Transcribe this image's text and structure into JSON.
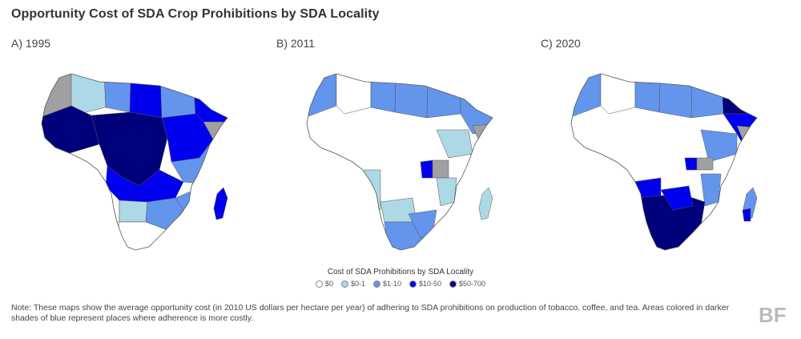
{
  "title": "Opportunity Cost of SDA Crop Prohibitions by SDA Locality",
  "colors": {
    "c0": "#ffffff",
    "c1": "#add8e6",
    "c2": "#6495ed",
    "c3": "#0000ee",
    "c4": "#00007a",
    "nodata": "#a0a0a0",
    "border": "#555555"
  },
  "panels": [
    {
      "label": "A) 1995"
    },
    {
      "label": "B) 2011"
    },
    {
      "label": "C) 2020"
    }
  ],
  "legend": {
    "title": "Cost of SDA Prohibitions by SDA Locality",
    "items": [
      {
        "label": "$0",
        "color": "#ffffff"
      },
      {
        "label": "$0-1",
        "color": "#add8e6"
      },
      {
        "label": "$1-10",
        "color": "#6495ed"
      },
      {
        "label": "$10-50",
        "color": "#0000ee"
      },
      {
        "label": "$50-700",
        "color": "#00007a"
      }
    ]
  },
  "note": "Note: These maps show the average opportunity cost (in 2010 US dollars per hectare per year) of adhering to SDA prohibitions on production of tobacco, coffee, and tea. Areas colored in darker shades of blue represent places where adherence is more costly.",
  "logo_text": "BF"
}
